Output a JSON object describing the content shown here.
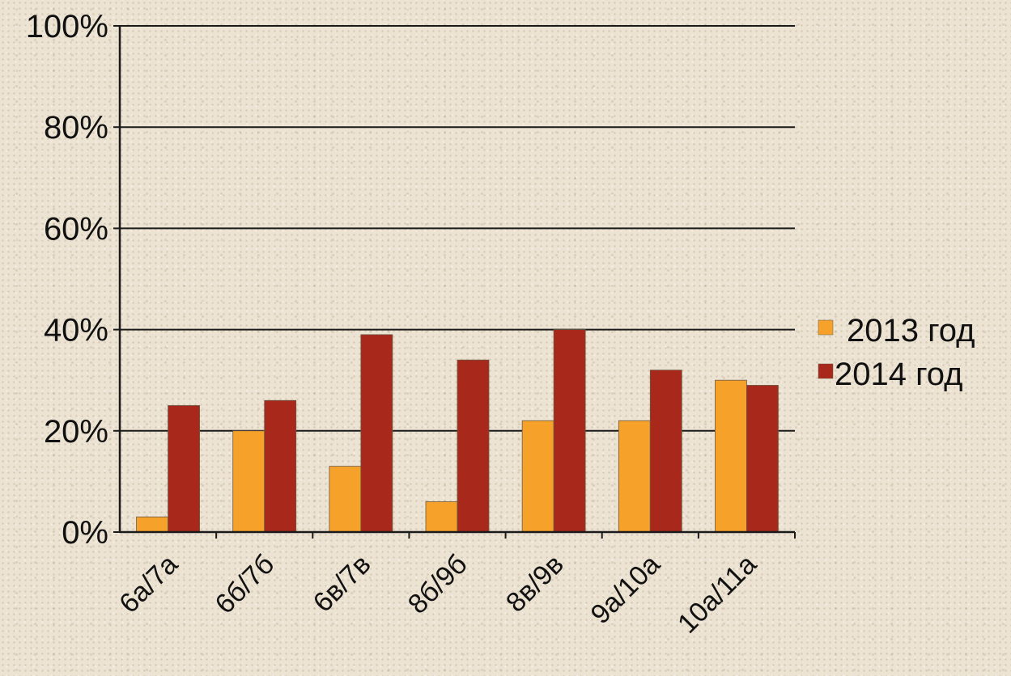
{
  "chart_data": {
    "type": "bar",
    "categories": [
      "6а/7а",
      "6б/7б",
      "6в/7в",
      "8б/9б",
      "8в/9в",
      "9а/10а",
      "10а/11а"
    ],
    "series": [
      {
        "name": "2013 год",
        "color": "#f5a12a",
        "values": [
          3,
          20,
          13,
          6,
          22,
          22,
          30
        ]
      },
      {
        "name": "2014 год",
        "color": "#a8281c",
        "values": [
          25,
          26,
          39,
          34,
          40,
          32,
          29
        ]
      }
    ],
    "ylim": [
      0,
      100
    ],
    "yticks": [
      "0%",
      "20%",
      "40%",
      "60%",
      "80%",
      "100%"
    ],
    "grid": true,
    "legend_position": "right"
  }
}
